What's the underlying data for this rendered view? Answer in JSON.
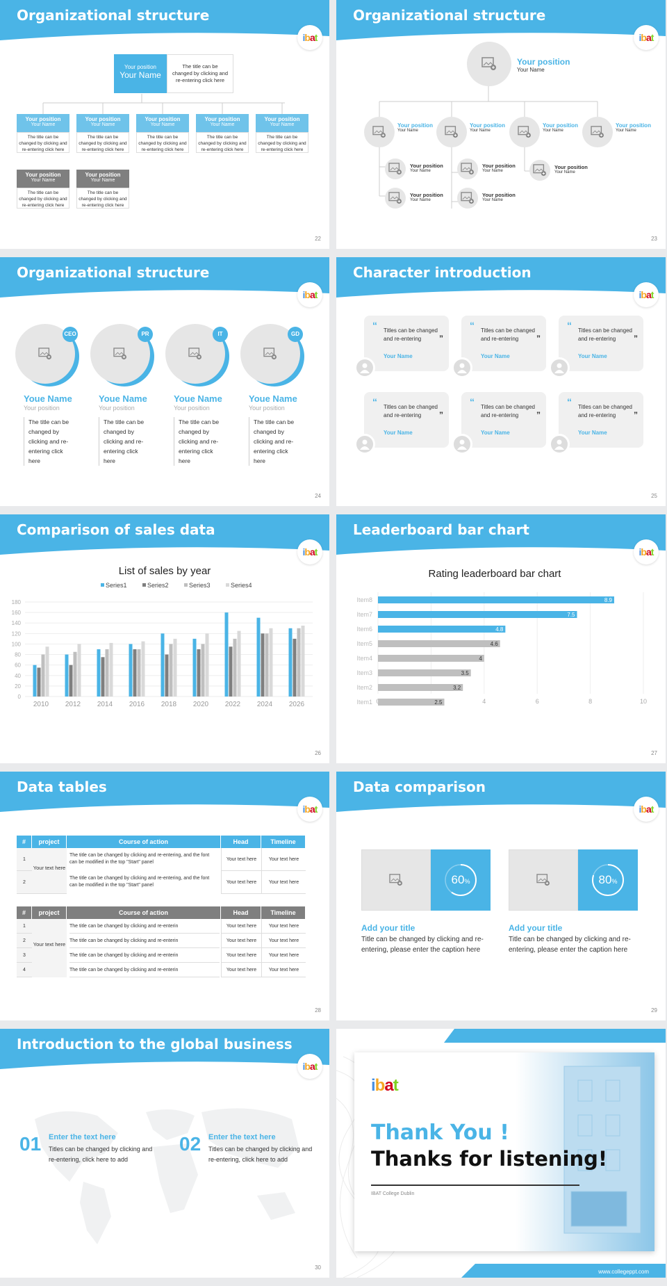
{
  "colors": {
    "accent": "#4ab4e6",
    "gray": "#808080",
    "light": "#e6e6e6"
  },
  "logo": [
    "i",
    "b",
    "a",
    "t"
  ],
  "s22": {
    "title": "Organizational structure",
    "page": "22",
    "top": {
      "position": "Your position",
      "name": "Your Name",
      "desc": "The title can be changed by clicking and re-entering click here"
    },
    "row1": [
      {
        "position": "Your position",
        "name": "Your Name",
        "desc": "The title can be changed by clicking and re-entering click here"
      },
      {
        "position": "Your position",
        "name": "Your Name",
        "desc": "The title can be changed by clicking and re-entering click here"
      },
      {
        "position": "Your position",
        "name": "Your Name",
        "desc": "The title can be changed by clicking and re-entering click here"
      },
      {
        "position": "Your position",
        "name": "Your Name",
        "desc": "The title can be changed by clicking and re-entering click here"
      },
      {
        "position": "Your position",
        "name": "Your Name",
        "desc": "The title can be changed by clicking and re-entering click here"
      }
    ],
    "row2": [
      {
        "position": "Your position",
        "name": "Your Name",
        "desc": "The title can be changed by clicking and re-entering click here"
      },
      {
        "position": "Your position",
        "name": "Your Name",
        "desc": "The title can be changed by clicking and re-entering click here"
      }
    ]
  },
  "s23": {
    "title": "Organizational structure",
    "page": "23",
    "top": {
      "position": "Your position",
      "name": "Your Name"
    },
    "mid": [
      {
        "position": "Your position",
        "name": "Your Name"
      },
      {
        "position": "Your position",
        "name": "Your Name"
      },
      {
        "position": "Your position",
        "name": "Your Name"
      },
      {
        "position": "Your position",
        "name": "Your Name"
      }
    ],
    "sub": [
      {
        "position": "Your position",
        "name": "Your Name"
      },
      {
        "position": "Your position",
        "name": "Your Name"
      },
      {
        "position": "Your position",
        "name": "Your Name"
      },
      {
        "position": "Your position",
        "name": "Your Name"
      },
      {
        "position": "Your position",
        "name": "Your Name"
      },
      {
        "position": "Your position",
        "name": "Your Name"
      }
    ]
  },
  "s24": {
    "title": "Organizational structure",
    "page": "24",
    "items": [
      {
        "badge": "CEO",
        "name": "Youe Name",
        "position": "Your position",
        "desc": "The title can be changed by clicking and re-entering click here"
      },
      {
        "badge": "PR",
        "name": "Youe Name",
        "position": "Your position",
        "desc": "The title can be changed by clicking and re-entering click here"
      },
      {
        "badge": "IT",
        "name": "Youe Name",
        "position": "Your position",
        "desc": "The title can be changed by clicking and re-entering click here"
      },
      {
        "badge": "GD",
        "name": "Youe Name",
        "position": "Your position",
        "desc": "The title can be changed by clicking and re-entering click here"
      }
    ]
  },
  "s25": {
    "title": "Character introduction",
    "page": "25",
    "cards": [
      {
        "text": "Titles can be changed and re-entering",
        "name": "Your Name"
      },
      {
        "text": "Titles can be changed and re-entering",
        "name": "Your Name"
      },
      {
        "text": "Titles can be changed and re-entering",
        "name": "Your Name"
      },
      {
        "text": "Titles can be changed and re-entering",
        "name": "Your Name"
      },
      {
        "text": "Titles can be changed and re-entering",
        "name": "Your Name"
      },
      {
        "text": "Titles can be changed and re-entering",
        "name": "Your Name"
      }
    ]
  },
  "s26": {
    "title": "Comparison of sales data",
    "page": "26"
  },
  "s27": {
    "title": "Leaderboard bar chart",
    "page": "27"
  },
  "chart_data": [
    {
      "type": "bar",
      "title": "List of sales by year",
      "categories": [
        "2010",
        "2012",
        "2014",
        "2016",
        "2018",
        "2020",
        "2022",
        "2024",
        "2026"
      ],
      "series": [
        {
          "name": "Series1",
          "color": "#4ab4e6",
          "values": [
            60,
            80,
            90,
            100,
            120,
            110,
            160,
            150,
            130
          ]
        },
        {
          "name": "Series2",
          "color": "#7f7f7f",
          "values": [
            55,
            60,
            75,
            90,
            80,
            90,
            95,
            120,
            110
          ]
        },
        {
          "name": "Series3",
          "color": "#bfbfbf",
          "values": [
            80,
            85,
            90,
            90,
            100,
            100,
            110,
            120,
            130
          ]
        },
        {
          "name": "Series4",
          "color": "#d9d9d9",
          "values": [
            95,
            100,
            102,
            105,
            110,
            120,
            125,
            130,
            135
          ]
        }
      ],
      "ylim": [
        0,
        180
      ],
      "yticks": [
        "0",
        "20",
        "40",
        "60",
        "80",
        "100",
        "120",
        "140",
        "160",
        "180"
      ],
      "legend": "top"
    },
    {
      "type": "bar",
      "orientation": "horizontal",
      "title": "Rating leaderboard bar chart",
      "categories": [
        "Item8",
        "Item7",
        "Item6",
        "Item5",
        "Item4",
        "Item3",
        "Item2",
        "Item1"
      ],
      "values": [
        8.9,
        7.5,
        4.8,
        4.6,
        4,
        3.5,
        3.2,
        2.5
      ],
      "labels": [
        "8.9",
        "7.5",
        "4.8",
        "4.6",
        "4",
        "3.5",
        "3.2",
        "2.5"
      ],
      "highlight": [
        true,
        true,
        true,
        false,
        false,
        false,
        false,
        false
      ],
      "xlim": [
        0,
        10
      ],
      "xticks": [
        "0",
        "2",
        "4",
        "6",
        "8",
        "10"
      ]
    }
  ],
  "s28": {
    "title": "Data tables",
    "page": "28",
    "headers": [
      "#",
      "project",
      "Course of action",
      "Head",
      "Timeline"
    ],
    "t1": {
      "project": "Your text here",
      "rows": [
        {
          "n": "1",
          "action": "The title can be changed by clicking and re-entering, and the font can be modified in the top \"Start\" panel",
          "head": "Your text here",
          "time": "Your text here"
        },
        {
          "n": "2",
          "action": "The title can be changed by clicking and re-entering, and the font can be modified in the top \"Start\" panel",
          "head": "Your text here",
          "time": "Your text here"
        }
      ]
    },
    "t2": {
      "project": "Your text here",
      "rows": [
        {
          "n": "1",
          "action": "The title can be changed by clicking and re-enterin",
          "head": "Your text here",
          "time": "Your text here"
        },
        {
          "n": "2",
          "action": "The title can be changed by clicking and re-enterin",
          "head": "Your text here",
          "time": "Your text here"
        },
        {
          "n": "3",
          "action": "The title can be changed by clicking and re-enterin",
          "head": "Your text here",
          "time": "Your text here"
        },
        {
          "n": "4",
          "action": "The title can be changed by clicking and re-enterin",
          "head": "Your text here",
          "time": "Your text here"
        }
      ]
    }
  },
  "s29": {
    "title": "Data comparison",
    "page": "29",
    "items": [
      {
        "percent": 60,
        "pct_label": "60",
        "unit": "%",
        "head": "Add your title",
        "text": "Title can be changed by clicking and re-entering, please enter the caption here"
      },
      {
        "percent": 80,
        "pct_label": "80",
        "unit": "%",
        "head": "Add your title",
        "text": "Title can be changed by clicking and re-entering, please enter the caption here"
      }
    ]
  },
  "s30": {
    "title": "Introduction to the global business",
    "page": "30",
    "items": [
      {
        "num": "01",
        "head": "Enter the text here",
        "text": "Titles can be changed by clicking and re-entering, click here to add"
      },
      {
        "num": "02",
        "head": "Enter the text here",
        "text": "Titles can be changed by clicking and re-entering, click here to add"
      }
    ]
  },
  "s31": {
    "line1": "Thank You !",
    "line2": "Thanks for listening!",
    "college": "IBAT College Dublin",
    "url": "www.collegeppt.com"
  }
}
